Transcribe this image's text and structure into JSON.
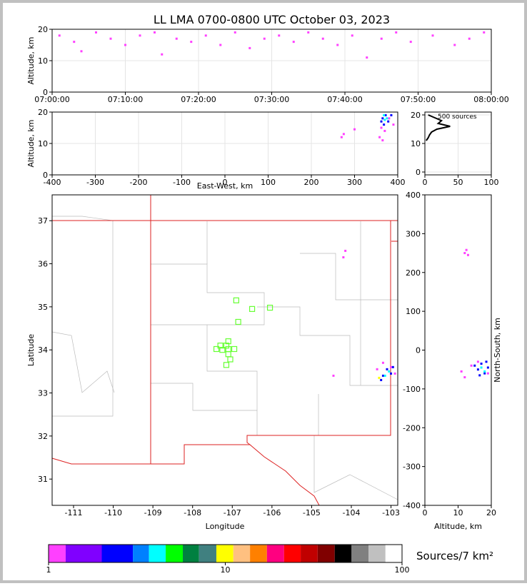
{
  "chart_data": [
    {
      "type": "scatter",
      "title": "LL LMA 0700-0800 UTC October 03, 2023",
      "ylabel": "Altitude, km",
      "xlim": [
        0,
        60
      ],
      "xticks": [
        {
          "value": 0,
          "label": "07:00:00"
        },
        {
          "value": 10,
          "label": "07:10:00"
        },
        {
          "value": 20,
          "label": "07:20:00"
        },
        {
          "value": 30,
          "label": "07:30:00"
        },
        {
          "value": 40,
          "label": "07:40:00"
        },
        {
          "value": 50,
          "label": "07:50:00"
        },
        {
          "value": 60,
          "label": "08:00:00"
        }
      ],
      "ylim": [
        0,
        20
      ],
      "yticks": [
        0,
        10,
        20
      ],
      "grid": true,
      "series": [
        {
          "color": "#ff40ff",
          "x": [
            1,
            3,
            4,
            6,
            8,
            10,
            12,
            14,
            15,
            17,
            19,
            21,
            23,
            25,
            27,
            29,
            31,
            33,
            35,
            37,
            39,
            41,
            43,
            45,
            47,
            49,
            52,
            55,
            57,
            59
          ],
          "y": [
            18,
            16,
            13,
            19,
            17,
            15,
            18,
            19,
            12,
            17,
            16,
            18,
            15,
            19,
            14,
            17,
            18,
            16,
            19,
            17,
            15,
            18,
            11,
            17,
            19,
            16,
            18,
            15,
            17,
            19
          ]
        }
      ]
    },
    {
      "type": "scatter",
      "xlabel": "East-West, km",
      "ylabel": "Altitude, km",
      "xlim": [
        -400,
        400
      ],
      "xticks": [
        -400,
        -300,
        -200,
        -100,
        0,
        100,
        200,
        300,
        400
      ],
      "ylim": [
        0,
        20
      ],
      "yticks": [
        0,
        10,
        20
      ],
      "grid": true,
      "series": [
        {
          "color": "#ff40ff",
          "x": [
            270,
            275,
            300,
            358,
            362,
            380,
            390,
            370,
            365
          ],
          "y": [
            12,
            13,
            14.5,
            12,
            15,
            18,
            16,
            14,
            11
          ]
        },
        {
          "color": "#0000ff",
          "x": [
            365,
            372,
            368,
            378,
            385,
            362
          ],
          "y": [
            18,
            19,
            16,
            17,
            19,
            17
          ]
        },
        {
          "color": "#00ffff",
          "x": [
            368,
            375,
            370
          ],
          "y": [
            19,
            18,
            17.5
          ]
        }
      ]
    },
    {
      "type": "line",
      "annotation": "500 sources",
      "color": "#000000",
      "xlim": [
        0,
        100
      ],
      "xticks": [
        0,
        50,
        100
      ],
      "ylim": [
        -1,
        21
      ],
      "yticks": [
        0,
        10,
        20
      ],
      "grid": true,
      "x": [
        2,
        5,
        7,
        10,
        18,
        38,
        20,
        25,
        15,
        5
      ],
      "y": [
        11,
        12,
        13,
        14,
        15,
        16,
        17,
        18,
        19,
        20
      ]
    },
    {
      "type": "scatter",
      "xlabel": "Longitude",
      "ylabel": "Latitude",
      "xlim": [
        -111.54,
        -102.83
      ],
      "xticks": [
        -111,
        -110,
        -109,
        -108,
        -107,
        -106,
        -105,
        -104,
        -103
      ],
      "ylim": [
        30.39,
        37.6
      ],
      "yticks": [
        31,
        32,
        33,
        34,
        35,
        36,
        37
      ],
      "grid": false,
      "series": [
        {
          "color": "#66ff33",
          "marker": "square",
          "x": [
            -106.9,
            -106.5,
            -106.05,
            -106.85,
            -107.1,
            -107.15,
            -107.3,
            -107.4,
            -107.25,
            -107.1,
            -106.95,
            -107.1,
            -107.05,
            -107.15
          ],
          "y": [
            35.15,
            34.95,
            34.98,
            34.65,
            34.2,
            34.1,
            34.1,
            34.02,
            34.0,
            34.02,
            34.02,
            33.9,
            33.78,
            33.65
          ]
        },
        {
          "color": "#ff40ff",
          "x": [
            -104.15,
            -104.2,
            -103.0,
            -102.9,
            -103.2,
            -103.35,
            -104.45
          ],
          "y": [
            36.3,
            36.15,
            33.6,
            33.45,
            33.7,
            33.55,
            33.4
          ]
        },
        {
          "color": "#0000ff",
          "x": [
            -103.1,
            -103.2,
            -103.0,
            -102.95,
            -103.25
          ],
          "y": [
            33.55,
            33.4,
            33.45,
            33.6,
            33.3
          ]
        },
        {
          "color": "#00ffff",
          "x": [
            -103.15,
            -103.05
          ],
          "y": [
            33.4,
            33.5
          ]
        },
        {
          "color": "#ffff00",
          "x": [
            -103.3
          ],
          "y": [
            33.35
          ]
        }
      ]
    },
    {
      "type": "scatter",
      "xlabel": "Altitude, km",
      "ylabel": "North-South, km",
      "ylabel_position": "right",
      "xlim": [
        0,
        20
      ],
      "xticks": [
        0,
        10,
        20
      ],
      "ylim": [
        -400,
        400
      ],
      "yticks": [
        -400,
        -300,
        -200,
        -100,
        0,
        100,
        200,
        300,
        400
      ],
      "grid": false,
      "series": [
        {
          "color": "#ff40ff",
          "x": [
            12,
            13,
            12.5,
            11,
            12,
            14,
            16,
            19
          ],
          "y": [
            250,
            245,
            258,
            -55,
            -70,
            -40,
            -30,
            -60
          ]
        },
        {
          "color": "#0000ff",
          "x": [
            15,
            16,
            17,
            18,
            19,
            16.5,
            18.5
          ],
          "y": [
            -40,
            -50,
            -35,
            -60,
            -45,
            -65,
            -30
          ]
        },
        {
          "color": "#00ffff",
          "x": [
            17,
            18
          ],
          "y": [
            -45,
            -55
          ]
        }
      ]
    },
    {
      "type": "colorbar",
      "label": "Sources/7 km²",
      "log": true,
      "xlim": [
        1,
        100
      ],
      "xticks": [
        1,
        10,
        100
      ],
      "bounds": [
        1,
        1.25,
        2,
        3,
        3.7,
        4.6,
        5.75,
        7.1,
        8.9,
        11.1,
        13.8,
        17.2,
        21.5,
        26.7,
        33.3,
        41.6,
        51.8,
        64.6,
        80.6,
        100
      ],
      "colors": [
        "#ff40ff",
        "#8000ff",
        "#0000ff",
        "#0080ff",
        "#00ffff",
        "#00ff00",
        "#008040",
        "#408080",
        "#ffff00",
        "#ffc080",
        "#ff8000",
        "#ff0080",
        "#ff0000",
        "#c00000",
        "#800000",
        "#000000",
        "#808080",
        "#c0c0c0",
        "#ffffff"
      ]
    }
  ]
}
